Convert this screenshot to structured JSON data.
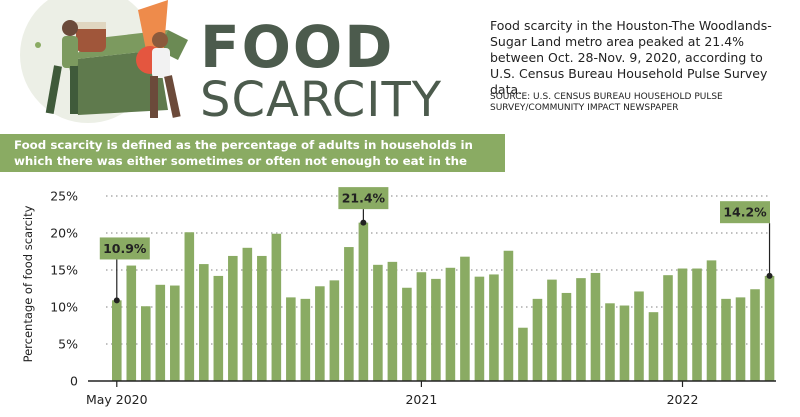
{
  "header": {
    "title_line1": "FOOD",
    "title_line2": "SCARCITY",
    "description": "Food scarcity in the Houston-The Woodlands-Sugar Land metro area peaked at 21.4% between Oct. 28-Nov. 9, 2020, according to U.S. Census Bureau Household Pulse Survey data.",
    "source": "SOURCE: U.S. CENSUS BUREAU HOUSEHOLD PULSE SURVEY/COMMUNITY IMPACT NEWSPAPER"
  },
  "banner": {
    "bold_part": "Food scarcity",
    "rest": " is defined as the percentage of adults in households in which there was either sometimes or often not enough to eat in the last seven days."
  },
  "colors": {
    "bar": "#8aab63",
    "title": "#4c5b4d",
    "banner": "#8aab63"
  },
  "chart_data": {
    "type": "bar",
    "ylabel": "Percentage of food scarcity",
    "ylim": [
      0,
      25
    ],
    "y_ticks": [
      0,
      5,
      10,
      15,
      20,
      25
    ],
    "y_tick_labels": [
      "0",
      "5%",
      "10%",
      "15%",
      "20%",
      "25%"
    ],
    "grid": "dotted horizontal",
    "x_tick_labels": [
      {
        "label": "May 2020",
        "index": 0
      },
      {
        "label": "2021",
        "index": 21
      },
      {
        "label": "2022",
        "index": 39
      }
    ],
    "values": [
      10.9,
      15.6,
      10.1,
      13.0,
      12.9,
      20.1,
      15.8,
      14.2,
      16.9,
      18.0,
      16.9,
      19.9,
      11.3,
      11.1,
      12.8,
      13.6,
      18.1,
      21.4,
      15.7,
      16.1,
      12.6,
      14.7,
      13.8,
      15.3,
      16.8,
      14.1,
      14.4,
      17.6,
      7.2,
      11.1,
      13.7,
      11.9,
      13.9,
      14.6,
      10.5,
      10.2,
      12.1,
      9.3,
      14.3,
      15.2,
      15.2,
      16.3,
      11.1,
      11.3,
      12.4,
      14.2
    ],
    "annotations": [
      {
        "index": 0,
        "text": "10.9%"
      },
      {
        "index": 17,
        "text": "21.4%"
      },
      {
        "index": 45,
        "text": "14.2%"
      }
    ]
  }
}
